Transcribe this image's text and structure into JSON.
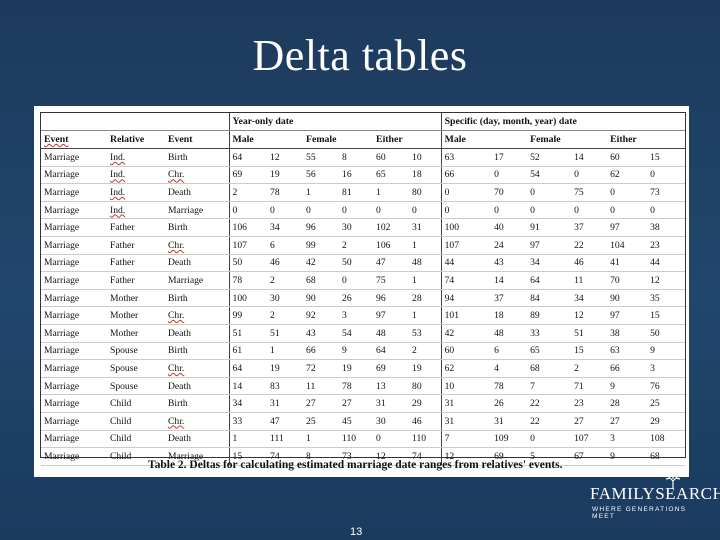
{
  "slide": {
    "title": "Delta tables",
    "page_number": "13"
  },
  "table": {
    "group_headers": [
      "Year-only date",
      "Specific (day, month, year) date"
    ],
    "sub_headers": [
      "Male",
      "Female",
      "Either"
    ],
    "col_headers": [
      "Event",
      "Relative",
      "Event"
    ],
    "rows": [
      [
        "Marriage",
        "Ind.",
        "Birth",
        "64",
        "12",
        "55",
        "8",
        "60",
        "10",
        "63",
        "17",
        "52",
        "14",
        "60",
        "15"
      ],
      [
        "Marriage",
        "Ind.",
        "Chr.",
        "69",
        "19",
        "56",
        "16",
        "65",
        "18",
        "66",
        "0",
        "54",
        "0",
        "62",
        "0"
      ],
      [
        "Marriage",
        "Ind.",
        "Death",
        "2",
        "78",
        "1",
        "81",
        "1",
        "80",
        "0",
        "70",
        "0",
        "75",
        "0",
        "73"
      ],
      [
        "Marriage",
        "Ind.",
        "Marriage",
        "0",
        "0",
        "0",
        "0",
        "0",
        "0",
        "0",
        "0",
        "0",
        "0",
        "0",
        "0"
      ],
      [
        "Marriage",
        "Father",
        "Birth",
        "106",
        "34",
        "96",
        "30",
        "102",
        "31",
        "100",
        "40",
        "91",
        "37",
        "97",
        "38"
      ],
      [
        "Marriage",
        "Father",
        "Chr.",
        "107",
        "6",
        "99",
        "2",
        "106",
        "1",
        "107",
        "24",
        "97",
        "22",
        "104",
        "23"
      ],
      [
        "Marriage",
        "Father",
        "Death",
        "50",
        "46",
        "42",
        "50",
        "47",
        "48",
        "44",
        "43",
        "34",
        "46",
        "41",
        "44"
      ],
      [
        "Marriage",
        "Father",
        "Marriage",
        "78",
        "2",
        "68",
        "0",
        "75",
        "1",
        "74",
        "14",
        "64",
        "11",
        "70",
        "12"
      ],
      [
        "Marriage",
        "Mother",
        "Birth",
        "100",
        "30",
        "90",
        "26",
        "96",
        "28",
        "94",
        "37",
        "84",
        "34",
        "90",
        "35"
      ],
      [
        "Marriage",
        "Mother",
        "Chr.",
        "99",
        "2",
        "92",
        "3",
        "97",
        "1",
        "101",
        "18",
        "89",
        "12",
        "97",
        "15"
      ],
      [
        "Marriage",
        "Mother",
        "Death",
        "51",
        "51",
        "43",
        "54",
        "48",
        "53",
        "42",
        "48",
        "33",
        "51",
        "38",
        "50"
      ],
      [
        "Marriage",
        "Spouse",
        "Birth",
        "61",
        "1",
        "66",
        "9",
        "64",
        "2",
        "60",
        "6",
        "65",
        "15",
        "63",
        "9"
      ],
      [
        "Marriage",
        "Spouse",
        "Chr.",
        "64",
        "19",
        "72",
        "19",
        "69",
        "19",
        "62",
        "4",
        "68",
        "2",
        "66",
        "3"
      ],
      [
        "Marriage",
        "Spouse",
        "Death",
        "14",
        "83",
        "11",
        "78",
        "13",
        "80",
        "10",
        "78",
        "7",
        "71",
        "9",
        "76"
      ],
      [
        "Marriage",
        "Child",
        "Birth",
        "34",
        "31",
        "27",
        "27",
        "31",
        "29",
        "31",
        "26",
        "22",
        "23",
        "28",
        "25"
      ],
      [
        "Marriage",
        "Child",
        "Chr.",
        "33",
        "47",
        "25",
        "45",
        "30",
        "46",
        "31",
        "31",
        "22",
        "27",
        "27",
        "29"
      ],
      [
        "Marriage",
        "Child",
        "Death",
        "1",
        "111",
        "1",
        "110",
        "0",
        "110",
        "7",
        "109",
        "0",
        "107",
        "3",
        "108"
      ],
      [
        "Marriage",
        "Child",
        "Marriage",
        "15",
        "74",
        "8",
        "73",
        "12",
        "74",
        "12",
        "69",
        "5",
        "67",
        "9",
        "68"
      ]
    ],
    "caption": "Table 2.  Deltas for calculating estimated marriage date ranges from relatives' events."
  },
  "logo": {
    "brand": "FAMILYSEARCH",
    "tagline": "WHERE GENERATIONS MEET"
  }
}
